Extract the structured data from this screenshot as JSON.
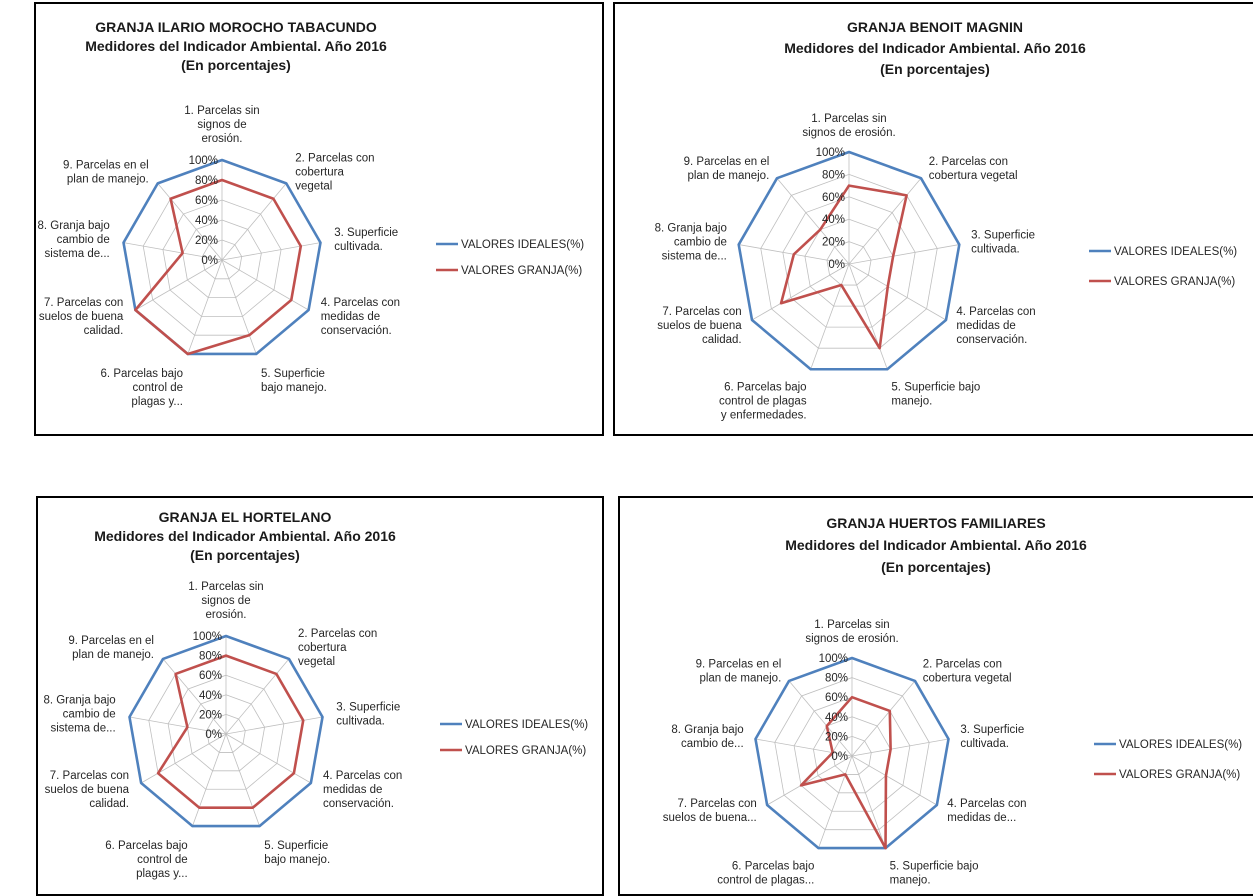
{
  "series_colors": {
    "ideal": "#4f81bd",
    "granja": "#c0504d"
  },
  "chart_data": [
    {
      "type": "radar",
      "title": [
        "GRANJA ILARIO MOROCHO TABACUNDO",
        "Medidores del Indicador Ambiental. Año  2016",
        "(En porcentajes)"
      ],
      "categories": [
        [
          "1. Parcelas sin",
          "signos de",
          "erosión."
        ],
        [
          "2. Parcelas con",
          "cobertura",
          "vegetal"
        ],
        [
          "3. Superficie",
          "cultivada."
        ],
        [
          "4. Parcelas con",
          "medidas de",
          "conservación."
        ],
        [
          "5. Superficie",
          "bajo manejo."
        ],
        [
          "6. Parcelas bajo",
          "control de",
          "plagas y..."
        ],
        [
          "7. Parcelas con",
          "suelos de buena",
          "calidad."
        ],
        [
          "8. Granja bajo",
          "cambio de",
          "sistema de..."
        ],
        [
          "9. Parcelas en el",
          "plan de manejo."
        ]
      ],
      "rlim": [
        0,
        100
      ],
      "ticks": [
        "0%",
        "20%",
        "40%",
        "60%",
        "80%",
        "100%"
      ],
      "series": [
        {
          "name": "VALORES IDEALES(%)",
          "values": [
            100,
            100,
            100,
            100,
            100,
            100,
            100,
            100,
            100
          ]
        },
        {
          "name": "VALORES GRANJA(%)",
          "values": [
            80,
            80,
            80,
            80,
            80,
            100,
            100,
            40,
            80
          ]
        }
      ],
      "legend": "right"
    },
    {
      "type": "radar",
      "title": [
        "GRANJA BENOIT MAGNIN",
        "Medidores del Indicador  Ambiental. Año 2016",
        "(En porcentajes)"
      ],
      "categories": [
        [
          "1. Parcelas sin",
          "signos de erosión."
        ],
        [
          "2. Parcelas con",
          "cobertura vegetal"
        ],
        [
          "3. Superficie",
          "cultivada."
        ],
        [
          "4. Parcelas con",
          "medidas de",
          "conservación."
        ],
        [
          "5. Superficie bajo",
          "manejo."
        ],
        [
          "6. Parcelas bajo",
          "control de plagas",
          "y enfermedades."
        ],
        [
          "7. Parcelas con",
          "suelos de buena",
          "calidad."
        ],
        [
          "8. Granja bajo",
          "cambio de",
          "sistema de..."
        ],
        [
          "9. Parcelas en el",
          "plan de manejo."
        ]
      ],
      "rlim": [
        0,
        100
      ],
      "ticks": [
        "0%",
        "20%",
        "40%",
        "60%",
        "80%",
        "100%"
      ],
      "series": [
        {
          "name": "VALORES IDEALES(%)",
          "values": [
            100,
            100,
            100,
            100,
            100,
            100,
            100,
            100,
            100
          ]
        },
        {
          "name": "VALORES GRANJA(%)",
          "values": [
            70,
            80,
            40,
            40,
            80,
            20,
            70,
            50,
            40
          ]
        }
      ],
      "legend": "right"
    },
    {
      "type": "radar",
      "title": [
        "GRANJA EL HORTELANO",
        "Medidores del Indicador  Ambiental. Año  2016",
        "(En porcentajes)"
      ],
      "categories": [
        [
          "1. Parcelas sin",
          "signos de",
          "erosión."
        ],
        [
          "2. Parcelas con",
          "cobertura",
          "vegetal"
        ],
        [
          "3. Superficie",
          "cultivada."
        ],
        [
          "4. Parcelas con",
          "medidas de",
          "conservación."
        ],
        [
          "5. Superficie",
          "bajo manejo."
        ],
        [
          "6. Parcelas bajo",
          "control de",
          "plagas y..."
        ],
        [
          "7. Parcelas con",
          "suelos de buena",
          "calidad."
        ],
        [
          "8. Granja bajo",
          "cambio de",
          "sistema de..."
        ],
        [
          "9. Parcelas en el",
          "plan de manejo."
        ]
      ],
      "rlim": [
        0,
        100
      ],
      "ticks": [
        "0%",
        "20%",
        "40%",
        "60%",
        "80%",
        "100%"
      ],
      "series": [
        {
          "name": "VALORES IDEALES(%)",
          "values": [
            100,
            100,
            100,
            100,
            100,
            100,
            100,
            100,
            100
          ]
        },
        {
          "name": "VALORES GRANJA(%)",
          "values": [
            80,
            80,
            80,
            80,
            80,
            80,
            80,
            40,
            80
          ]
        }
      ],
      "legend": "right"
    },
    {
      "type": "radar",
      "title": [
        "GRANJA HUERTOS FAMILIARES",
        "Medidores del Indicador  Ambiental. Año  2016",
        "(En porcentajes)"
      ],
      "categories": [
        [
          "1. Parcelas sin",
          "signos de erosión."
        ],
        [
          "2. Parcelas con",
          "cobertura vegetal"
        ],
        [
          "3. Superficie",
          "cultivada."
        ],
        [
          "4. Parcelas con",
          "medidas de..."
        ],
        [
          "5. Superficie bajo",
          "manejo."
        ],
        [
          "6. Parcelas bajo",
          "control de plagas..."
        ],
        [
          "7. Parcelas con",
          "suelos de buena..."
        ],
        [
          "8. Granja bajo",
          "cambio de..."
        ],
        [
          "9. Parcelas en el",
          "plan de manejo."
        ]
      ],
      "rlim": [
        0,
        100
      ],
      "ticks": [
        "0%",
        "20%",
        "40%",
        "60%",
        "80%",
        "100%"
      ],
      "series": [
        {
          "name": "VALORES IDEALES(%)",
          "values": [
            100,
            100,
            100,
            100,
            100,
            100,
            100,
            100,
            100
          ]
        },
        {
          "name": "VALORES GRANJA(%)",
          "values": [
            60,
            60,
            40,
            40,
            100,
            20,
            60,
            20,
            40
          ]
        }
      ],
      "legend": "right"
    }
  ]
}
